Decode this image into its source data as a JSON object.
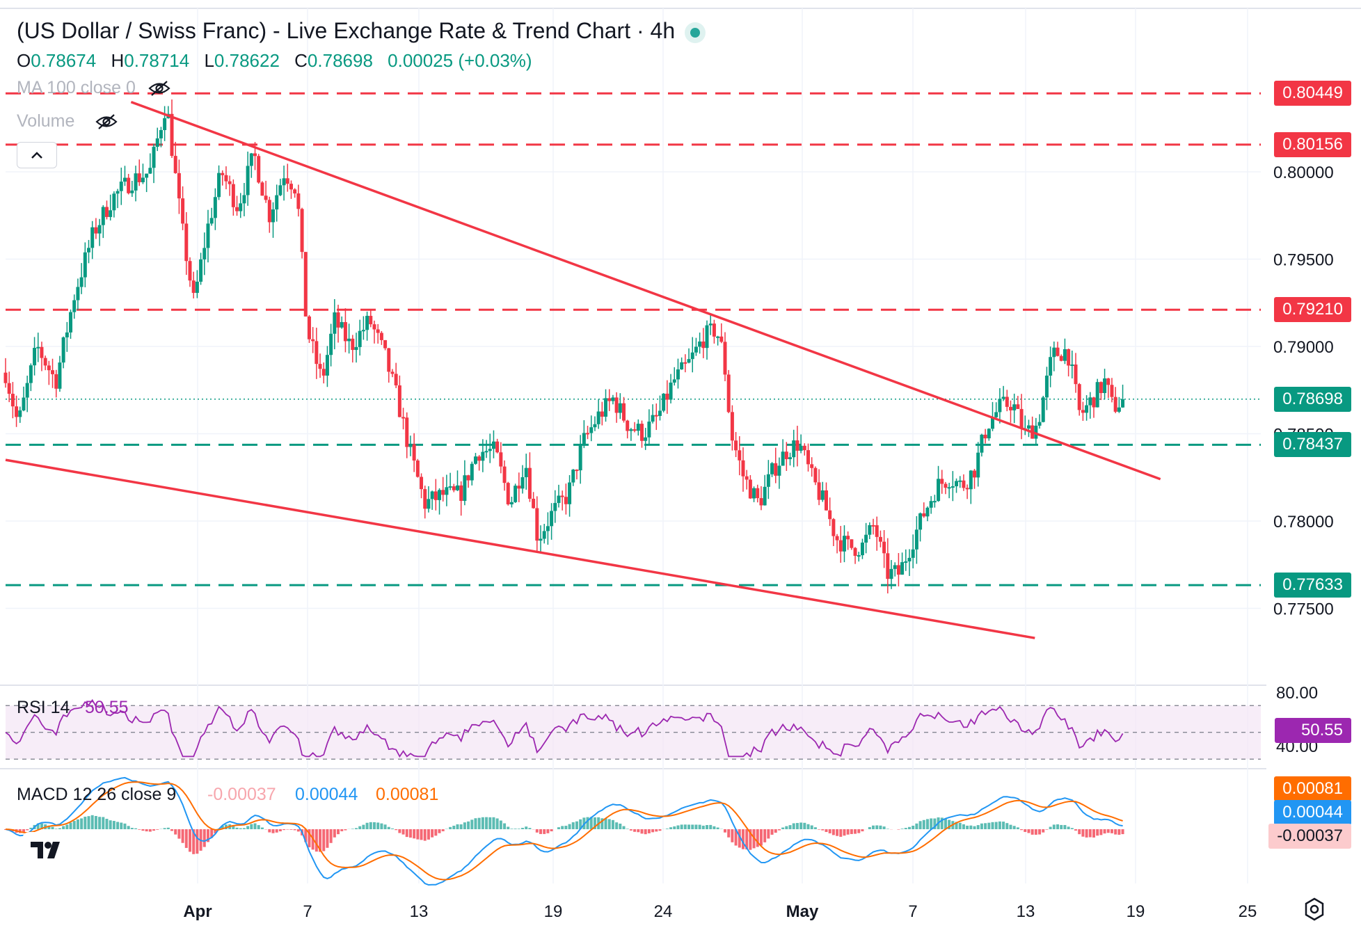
{
  "header": {
    "title": "(US Dollar / Swiss Franc) - Live Exchange Rate & Trend Chart · 4h",
    "ohlc": {
      "o_label": "O",
      "o_value": "0.78674",
      "h_label": "H",
      "h_value": "0.78714",
      "l_label": "L",
      "l_value": "0.78622",
      "c_label": "C",
      "c_value": "0.78698",
      "change": "0.00025 (+0.03%)"
    },
    "indicators": {
      "ma": "MA 100 close 0",
      "volume": "Volume"
    },
    "icons": [
      "eye-off-icon",
      "chevron-up-icon",
      "tradingview-logo",
      "settings-gear-icon"
    ]
  },
  "chart_data": {
    "type": "candlestick",
    "title": "(US Dollar / Swiss Franc) - Live Exchange Rate & Trend Chart · 4h",
    "timeframe": "4h",
    "y_axis": {
      "ticks": [
        "0.80000",
        "0.79500",
        "0.79000",
        "0.78500",
        "0.78000",
        "0.77500"
      ],
      "range": [
        0.771,
        0.806
      ]
    },
    "x_axis": {
      "ticks": [
        "Apr",
        "7",
        "13",
        "19",
        "24",
        "May",
        "7",
        "13",
        "19",
        "25"
      ]
    },
    "current_price": {
      "value": 0.78698,
      "label": "0.78698"
    },
    "horizontal_levels": [
      {
        "value": 0.80449,
        "label": "0.80449",
        "style": "resistance",
        "color": "#f23645"
      },
      {
        "value": 0.80156,
        "label": "0.80156",
        "style": "resistance",
        "color": "#f23645"
      },
      {
        "value": 0.7921,
        "label": "0.79210",
        "style": "resistance",
        "color": "#f23645"
      },
      {
        "value": 0.78437,
        "label": "0.78437",
        "style": "support",
        "color": "#089981"
      },
      {
        "value": 0.77633,
        "label": "0.77633",
        "style": "support",
        "color": "#089981"
      }
    ],
    "trendlines": [
      {
        "name": "upper",
        "from": [
          0.1,
          0.804
        ],
        "to": [
          0.92,
          0.7824
        ]
      },
      {
        "name": "lower",
        "from": [
          0.0,
          0.7835
        ],
        "to": [
          0.82,
          0.7733
        ]
      }
    ],
    "price_path": [
      [
        0.0,
        0.7885
      ],
      [
        0.01,
        0.7855
      ],
      [
        0.025,
        0.79
      ],
      [
        0.04,
        0.788
      ],
      [
        0.055,
        0.793
      ],
      [
        0.07,
        0.7965
      ],
      [
        0.085,
        0.7985
      ],
      [
        0.1,
        0.7995
      ],
      [
        0.115,
        0.8
      ],
      [
        0.128,
        0.804
      ],
      [
        0.14,
        0.797
      ],
      [
        0.15,
        0.7925
      ],
      [
        0.16,
        0.7965
      ],
      [
        0.172,
        0.8
      ],
      [
        0.185,
        0.798
      ],
      [
        0.198,
        0.801
      ],
      [
        0.21,
        0.7975
      ],
      [
        0.222,
        0.8
      ],
      [
        0.232,
        0.799
      ],
      [
        0.24,
        0.791
      ],
      [
        0.252,
        0.788
      ],
      [
        0.262,
        0.7915
      ],
      [
        0.275,
        0.79
      ],
      [
        0.29,
        0.7915
      ],
      [
        0.302,
        0.7895
      ],
      [
        0.312,
        0.787
      ],
      [
        0.322,
        0.784
      ],
      [
        0.334,
        0.781
      ],
      [
        0.348,
        0.7815
      ],
      [
        0.362,
        0.7815
      ],
      [
        0.376,
        0.784
      ],
      [
        0.39,
        0.784
      ],
      [
        0.402,
        0.781
      ],
      [
        0.414,
        0.7835
      ],
      [
        0.424,
        0.779
      ],
      [
        0.436,
        0.7805
      ],
      [
        0.448,
        0.7815
      ],
      [
        0.46,
        0.7845
      ],
      [
        0.472,
        0.786
      ],
      [
        0.484,
        0.787
      ],
      [
        0.496,
        0.7855
      ],
      [
        0.508,
        0.785
      ],
      [
        0.52,
        0.786
      ],
      [
        0.532,
        0.788
      ],
      [
        0.544,
        0.789
      ],
      [
        0.556,
        0.7905
      ],
      [
        0.566,
        0.791
      ],
      [
        0.572,
        0.7895
      ],
      [
        0.578,
        0.785
      ],
      [
        0.588,
        0.7825
      ],
      [
        0.6,
        0.781
      ],
      [
        0.612,
        0.783
      ],
      [
        0.622,
        0.784
      ],
      [
        0.632,
        0.7845
      ],
      [
        0.642,
        0.7825
      ],
      [
        0.652,
        0.781
      ],
      [
        0.662,
        0.779
      ],
      [
        0.672,
        0.7785
      ],
      [
        0.682,
        0.7785
      ],
      [
        0.692,
        0.7798
      ],
      [
        0.702,
        0.777
      ],
      [
        0.712,
        0.777
      ],
      [
        0.722,
        0.7788
      ],
      [
        0.732,
        0.7805
      ],
      [
        0.742,
        0.782
      ],
      [
        0.752,
        0.7825
      ],
      [
        0.762,
        0.782
      ],
      [
        0.772,
        0.783
      ],
      [
        0.782,
        0.7855
      ],
      [
        0.792,
        0.7865
      ],
      [
        0.802,
        0.7868
      ],
      [
        0.812,
        0.785
      ],
      [
        0.822,
        0.7855
      ],
      [
        0.834,
        0.7895
      ],
      [
        0.846,
        0.7898
      ],
      [
        0.856,
        0.786
      ],
      [
        0.866,
        0.787
      ],
      [
        0.876,
        0.788
      ],
      [
        0.882,
        0.7865
      ],
      [
        0.89,
        0.7869
      ]
    ],
    "rsi": {
      "label": "RSI",
      "period": "14",
      "value": "50.55",
      "ticks": [
        "80.00",
        "40.00"
      ],
      "bands": [
        70,
        50,
        30
      ],
      "range": [
        25,
        85
      ]
    },
    "macd": {
      "label": "MACD",
      "params": "12 26 close 9",
      "histogram_label": "-0.00037",
      "macd_label": "0.00044",
      "signal_label": "0.00081",
      "colors": {
        "macd": "#2196f3",
        "signal": "#ff6d00",
        "hist_pos": "#26a69a",
        "hist_neg": "#f23645"
      }
    }
  },
  "colors": {
    "up": "#089981",
    "down": "#f23645",
    "trendline": "#f23645",
    "rsi_line": "#9c27b0",
    "rsi_fill": "#f3e5f5",
    "grid": "#f0f3fa"
  }
}
